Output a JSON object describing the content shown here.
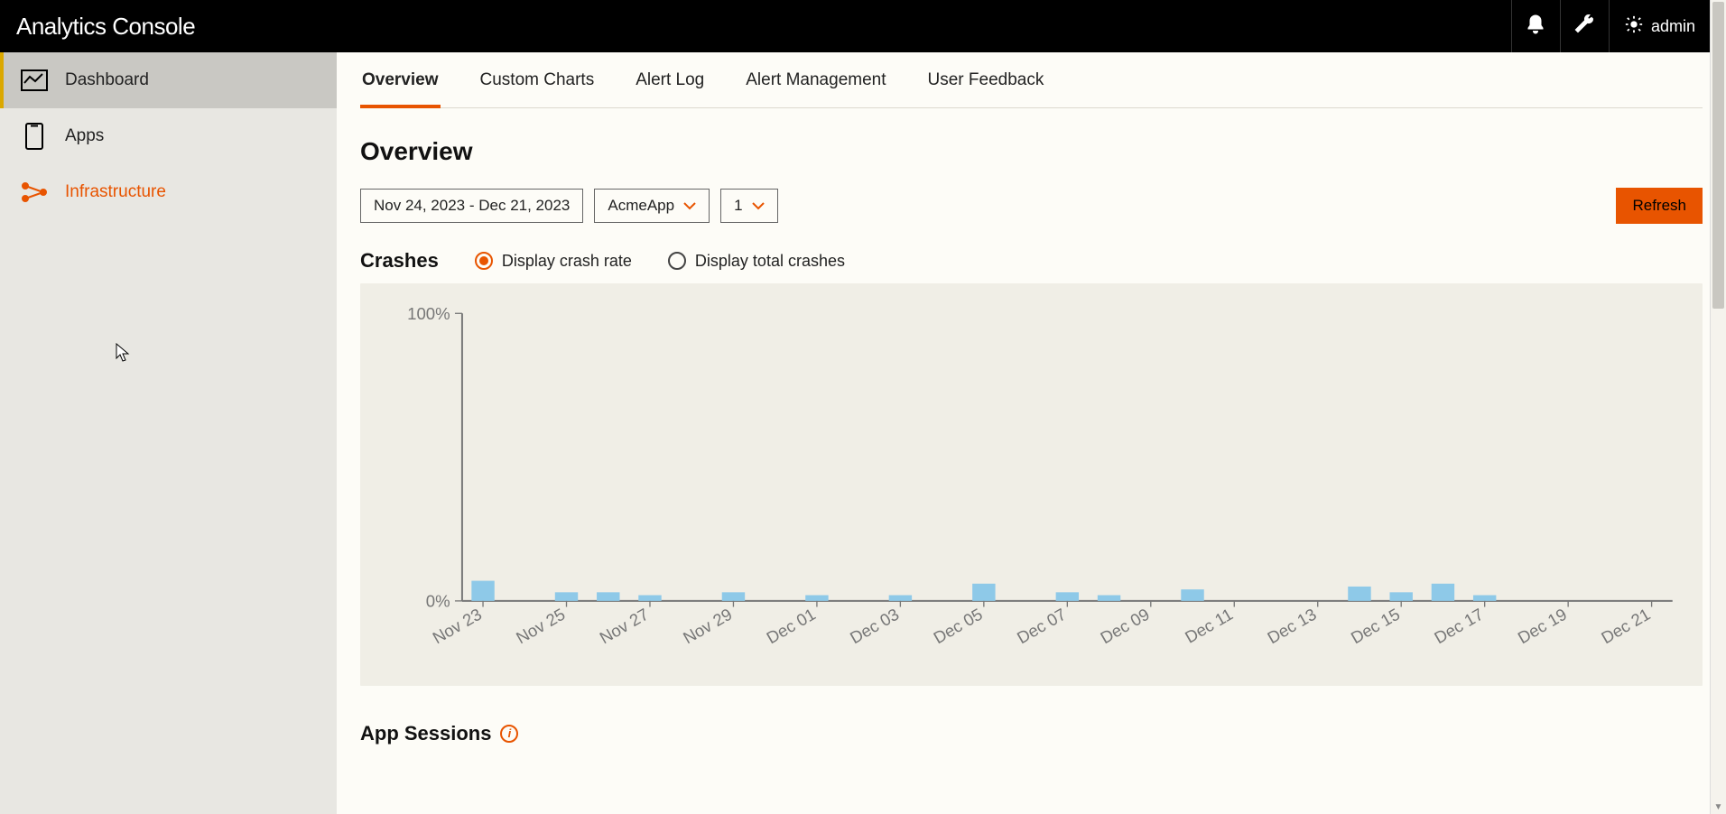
{
  "header": {
    "title": "Analytics Console",
    "user": "admin"
  },
  "sidebar": {
    "items": [
      {
        "label": "Dashboard"
      },
      {
        "label": "Apps"
      },
      {
        "label": "Infrastructure"
      }
    ]
  },
  "tabs": [
    {
      "label": "Overview",
      "active": true
    },
    {
      "label": "Custom Charts"
    },
    {
      "label": "Alert Log"
    },
    {
      "label": "Alert Management"
    },
    {
      "label": "User Feedback"
    }
  ],
  "page": {
    "title": "Overview",
    "filters": {
      "date_range": "Nov 24, 2023 - Dec 21, 2023",
      "app": "AcmeApp",
      "version": "1"
    },
    "refresh": "Refresh"
  },
  "crashes": {
    "title": "Crashes",
    "options": {
      "rate": "Display crash rate",
      "total": "Display total crashes"
    },
    "chart": {
      "type": "bar",
      "ylim": [
        0,
        100
      ],
      "yticks": [
        0,
        100
      ],
      "ytick_labels": [
        "0%",
        "100%"
      ],
      "xlabels_shown": [
        "Nov 23",
        "Nov 25",
        "Nov 27",
        "Nov 29",
        "Dec 01",
        "Dec 03",
        "Dec 05",
        "Dec 07",
        "Dec 09",
        "Dec 11",
        "Dec 13",
        "Dec 15",
        "Dec 17",
        "Dec 19",
        "Dec 21"
      ],
      "categories": [
        "Nov 23",
        "Nov 24",
        "Nov 25",
        "Nov 26",
        "Nov 27",
        "Nov 28",
        "Nov 29",
        "Nov 30",
        "Dec 01",
        "Dec 02",
        "Dec 03",
        "Dec 04",
        "Dec 05",
        "Dec 06",
        "Dec 07",
        "Dec 08",
        "Dec 09",
        "Dec 10",
        "Dec 11",
        "Dec 12",
        "Dec 13",
        "Dec 14",
        "Dec 15",
        "Dec 16",
        "Dec 17",
        "Dec 18",
        "Dec 19",
        "Dec 20",
        "Dec 21"
      ],
      "values": [
        7,
        0,
        3,
        3,
        2,
        0,
        3,
        0,
        2,
        0,
        2,
        0,
        6,
        0,
        3,
        2,
        0,
        4,
        0,
        0,
        0,
        5,
        3,
        6,
        2,
        0,
        0,
        0,
        0
      ],
      "bar_color": "#8ec9e8",
      "axis_color": "#777777",
      "label_color": "#777777",
      "background_color": "#f0eee6",
      "label_fontsize": 14,
      "xlabel_rotation": -30,
      "bar_width": 0.55
    }
  },
  "sessions": {
    "title": "App Sessions"
  },
  "colors": {
    "accent": "#e85400",
    "topbar": "#000000",
    "sidebar": "#e8e7e2",
    "sidebar_active": "#c9c8c3",
    "sidebar_active_border": "#dba800",
    "page_bg": "#fdfcf7"
  }
}
